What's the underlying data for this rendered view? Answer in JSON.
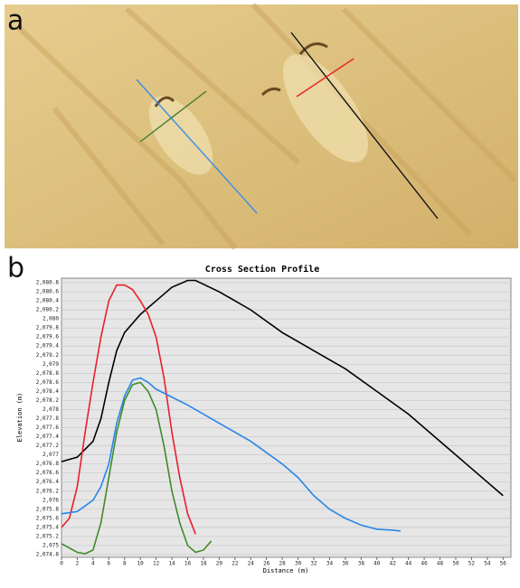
{
  "panel_labels": {
    "a": "a",
    "b": "b"
  },
  "chart_data": {
    "type": "line",
    "title": "Cross Section Profile",
    "x_label": "Distance (m)",
    "y_label": "Elevation (m)",
    "grid": true,
    "xlim": [
      0,
      57
    ],
    "ylim": [
      2074.74,
      2080.9
    ],
    "xticks": [
      0,
      2,
      4,
      6,
      8,
      10,
      12,
      14,
      16,
      18,
      20,
      22,
      24,
      26,
      28,
      30,
      32,
      34,
      36,
      38,
      40,
      42,
      44,
      46,
      48,
      50,
      52,
      54,
      56
    ],
    "yticks": [
      {
        "value": 2074.8,
        "label": "2,074.8"
      },
      {
        "value": 2075,
        "label": "2,075"
      },
      {
        "value": 2075.2,
        "label": "2,075.2"
      },
      {
        "value": 2075.4,
        "label": "2,075.4"
      },
      {
        "value": 2075.6,
        "label": "2,075.6"
      },
      {
        "value": 2075.8,
        "label": "2,075.8"
      },
      {
        "value": 2076,
        "label": "2,076"
      },
      {
        "value": 2076.2,
        "label": "2,076.2"
      },
      {
        "value": 2076.4,
        "label": "2,076.4"
      },
      {
        "value": 2076.6,
        "label": "2,076.6"
      },
      {
        "value": 2076.8,
        "label": "2,076.8"
      },
      {
        "value": 2077,
        "label": "2,077"
      },
      {
        "value": 2077.2,
        "label": "2,077.2"
      },
      {
        "value": 2077.4,
        "label": "2,077.4"
      },
      {
        "value": 2077.6,
        "label": "2,077.6"
      },
      {
        "value": 2077.8,
        "label": "2,077.8"
      },
      {
        "value": 2078,
        "label": "2,078"
      },
      {
        "value": 2078.2,
        "label": "2,078.2"
      },
      {
        "value": 2078.4,
        "label": "2,078.4"
      },
      {
        "value": 2078.6,
        "label": "2,078.6"
      },
      {
        "value": 2078.8,
        "label": "2,078.8"
      },
      {
        "value": 2079,
        "label": "2,079"
      },
      {
        "value": 2079.2,
        "label": "2,079.2"
      },
      {
        "value": 2079.4,
        "label": "2,079.4"
      },
      {
        "value": 2079.6,
        "label": "2,079.6"
      },
      {
        "value": 2079.8,
        "label": "2,079.8"
      },
      {
        "value": 2080,
        "label": "2,080"
      },
      {
        "value": 2080.2,
        "label": "2,080.2"
      },
      {
        "value": 2080.4,
        "label": "2,080.4"
      },
      {
        "value": 2080.6,
        "label": "2,080.6"
      },
      {
        "value": 2080.8,
        "label": "2,080.8"
      }
    ],
    "series": [
      {
        "color": "#000000",
        "x": [
          0,
          2,
          4,
          5,
          6,
          7,
          8,
          10,
          12,
          14,
          16,
          17,
          20,
          24,
          28,
          32,
          36,
          40,
          44,
          48,
          52,
          56
        ],
        "values": [
          2076.85,
          2076.95,
          2077.3,
          2077.8,
          2078.6,
          2079.3,
          2079.7,
          2080.1,
          2080.4,
          2080.7,
          2080.85,
          2080.85,
          2080.6,
          2080.2,
          2079.7,
          2079.3,
          2078.9,
          2078.4,
          2077.9,
          2077.3,
          2076.7,
          2076.1
        ]
      },
      {
        "color": "#e8202a",
        "x": [
          0,
          1,
          2,
          3,
          4,
          5,
          6,
          7,
          8,
          9,
          10,
          11,
          12,
          13,
          14,
          15,
          16,
          17
        ],
        "values": [
          2075.4,
          2075.6,
          2076.3,
          2077.5,
          2078.6,
          2079.6,
          2080.4,
          2080.75,
          2080.75,
          2080.65,
          2080.4,
          2080.1,
          2079.6,
          2078.7,
          2077.5,
          2076.5,
          2075.7,
          2075.25
        ]
      },
      {
        "color": "#2a86e8",
        "x": [
          0,
          2,
          4,
          5,
          6,
          7,
          8,
          9,
          10,
          11,
          12,
          16,
          20,
          24,
          28,
          30,
          32,
          34,
          36,
          38,
          40,
          42,
          43
        ],
        "values": [
          2075.7,
          2075.75,
          2076.0,
          2076.3,
          2076.8,
          2077.7,
          2078.3,
          2078.65,
          2078.7,
          2078.6,
          2078.45,
          2078.1,
          2077.7,
          2077.3,
          2076.8,
          2076.5,
          2076.1,
          2075.8,
          2075.6,
          2075.45,
          2075.36,
          2075.34,
          2075.32
        ]
      },
      {
        "color": "#3f8a2a",
        "x": [
          0,
          2,
          3,
          4,
          5,
          6,
          7,
          8,
          9,
          10,
          11,
          12,
          13,
          14,
          15,
          16,
          17,
          18,
          19
        ],
        "values": [
          2075.04,
          2074.85,
          2074.82,
          2074.9,
          2075.5,
          2076.5,
          2077.5,
          2078.2,
          2078.55,
          2078.6,
          2078.4,
          2078.0,
          2077.2,
          2076.2,
          2075.5,
          2075.0,
          2074.85,
          2074.9,
          2075.1
        ]
      }
    ]
  }
}
